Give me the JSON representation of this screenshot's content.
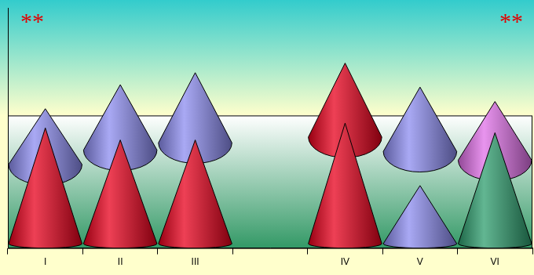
{
  "chart_data": {
    "type": "bar",
    "stacked": true,
    "categories": [
      "I",
      "II",
      "III",
      null,
      "IV",
      "V",
      "VI"
    ],
    "series": [
      {
        "colors": [
          "#e8001c",
          "#e8001c",
          "#e8001c",
          null,
          "#e8001c",
          "#8c8cf0",
          "#2e9e6e"
        ],
        "values": [
          50,
          45,
          45,
          null,
          52,
          26,
          48
        ]
      },
      {
        "colors": [
          "#8c8cf0",
          "#8c8cf0",
          "#8c8cf0",
          null,
          "#e8001c",
          "#8c8cf0",
          "#e070e8"
        ],
        "values": [
          8,
          23,
          28,
          null,
          25,
          41,
          13
        ]
      }
    ],
    "ylim": [
      0,
      100
    ],
    "tick_labels": "x",
    "grid": false,
    "annotations": [
      "**",
      "**"
    ]
  }
}
